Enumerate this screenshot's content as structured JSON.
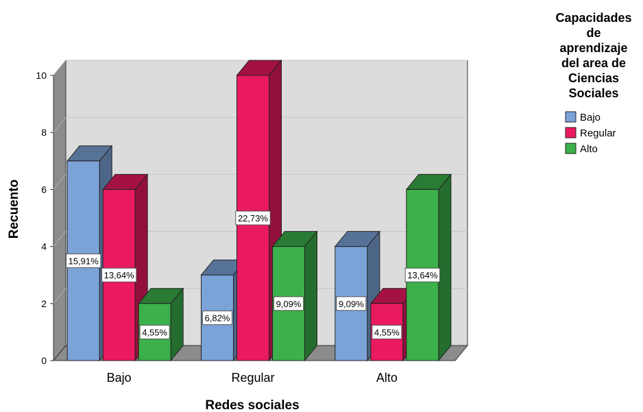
{
  "chart_data": {
    "type": "bar",
    "categories": [
      "Bajo",
      "Regular",
      "Alto"
    ],
    "series": [
      {
        "name": "Bajo",
        "color": "#7ca3d8",
        "values": [
          7,
          3,
          4
        ],
        "labels": [
          "15,91%",
          "6,82%",
          "9,09%"
        ]
      },
      {
        "name": "Regular",
        "color": "#ea1a5f",
        "values": [
          6,
          10,
          2
        ],
        "labels": [
          "13,64%",
          "22,73%",
          "4,55%"
        ]
      },
      {
        "name": "Alto",
        "color": "#3cb04a",
        "values": [
          2,
          4,
          6
        ],
        "labels": [
          "4,55%",
          "9,09%",
          "13,64%"
        ]
      }
    ],
    "xlabel": "Redes sociales",
    "ylabel": "Recuento",
    "ylim": [
      0,
      10
    ],
    "yticks": [
      0,
      2,
      4,
      6,
      8,
      10
    ],
    "grid": true,
    "legend": {
      "title_lines": [
        "Capacidades",
        "de",
        "aprendizaje",
        "del area de",
        "Ciencias",
        "Sociales"
      ],
      "placement": "right"
    }
  }
}
